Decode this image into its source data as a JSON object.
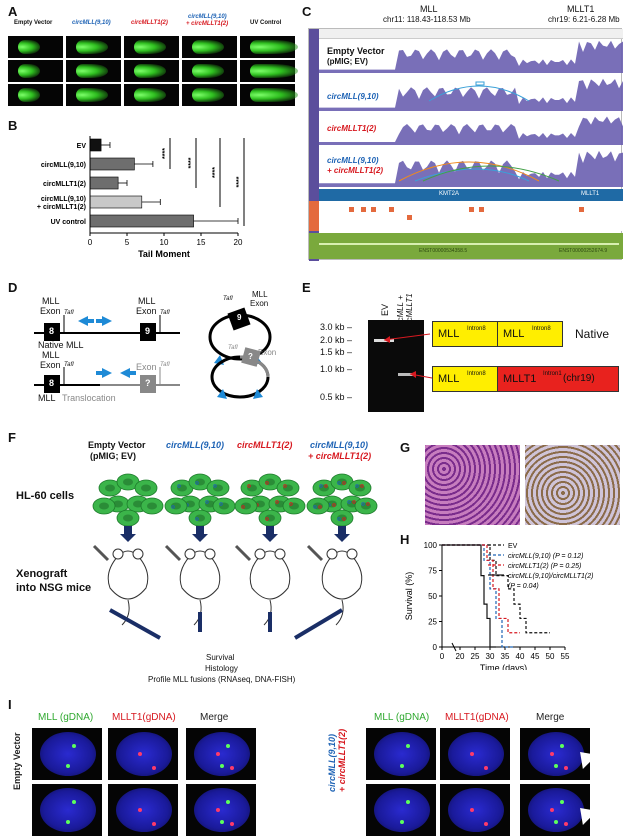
{
  "panels": {
    "A": "A",
    "B": "B",
    "C": "C",
    "D": "D",
    "E": "E",
    "F": "F",
    "G": "G",
    "H": "H",
    "I": "I"
  },
  "panel_a": {
    "columns": [
      "Empty Vector",
      "circMLL(9,10)",
      "circMLLT1(2)",
      "circMLL(9,10)",
      "+ circMLLT1(2)",
      "UV Control"
    ]
  },
  "panel_b": {
    "xlabel": "Tail Moment",
    "stars": "****",
    "chart_data": {
      "type": "bar",
      "categories": [
        "EV",
        "circMLL(9,10)",
        "circMLLT1(2)",
        "circMLL(9,10) + circMLLT1(2)",
        "UV control"
      ],
      "category_labels": [
        "EV",
        "circMLL(9,10)",
        "circMLLT1(2)",
        "circMLL(9,10)",
        "+ circMLLT1(2)",
        "UV control"
      ],
      "values": [
        1.5,
        6.0,
        3.8,
        7.0,
        14.0
      ],
      "errors": [
        1.2,
        2.5,
        1.2,
        2.5,
        6.0
      ],
      "colors": [
        "#111111",
        "#6e6e6e",
        "#6e6e6e",
        "#c8c8c8",
        "#6e6e6e"
      ],
      "xlabel": "Tail Moment",
      "xlim": [
        0,
        20
      ],
      "xticks": [
        "0",
        "5",
        "10",
        "15",
        "20"
      ],
      "significance": "****"
    }
  },
  "panel_c": {
    "gene1": "MLL",
    "coord1": "chr11: 118.43-118.53 Mb",
    "gene2": "MLLT1",
    "coord2": "chr19: 6.21-6.28 Mb",
    "track1": "Empty Vector",
    "track1b": "(pMIG; EV)",
    "track2": "circMLL(9,10)",
    "track3": "circMLLT1(2)",
    "track4a": "circMLL(9,10)",
    "track4b": "+ circMLLT1(2)",
    "gene_bar1": "KMT2A",
    "gene_bar2": "MLLT1",
    "ensembl1": "ENST00000534358.5",
    "ensembl2": "ENST00000252674.9"
  },
  "panel_d": {
    "mll": "MLL",
    "exon": "Exon",
    "exon8": "8",
    "exon9": "9",
    "tafI": "TafI",
    "native": "Native MLL",
    "q": "?",
    "trans1": "MLL",
    "trans2": "Translocation"
  },
  "panel_e": {
    "lane1": "EV",
    "lane2a": "circMLL +",
    "lane2b": "circMLLT1",
    "ladder": [
      "3.0 kb",
      "2.0 kb",
      "1.5 kb",
      "1.0 kb",
      "0.5 kb"
    ],
    "mll_intron": "MLL",
    "intron8": "Intron8",
    "mllt1": "MLLT1",
    "intron1": "Intron1",
    "chr19": " (chr19)",
    "native": "Native"
  },
  "panel_f": {
    "col1a": "Empty Vector",
    "col1b": "(pMIG; EV)",
    "col2": "circMLL(9,10)",
    "col3": "circMLLT1(2)",
    "col4a": "circMLL(9,10)",
    "col4b": "+ circMLLT1(2)",
    "row1": "HL-60 cells",
    "row2a": "Xenograft",
    "row2b": "into NSG mice",
    "out1": "Survival",
    "out2": "Histology",
    "out3": "Profile MLL fusions (RNAseq, DNA-FISH)"
  },
  "panel_h": {
    "ylabel": "Survival (%)",
    "xlabel": "Time (days)",
    "legend": [
      "EV",
      "circMLL(9,10) (P = 0.12)",
      "circMLLT1(2) (P = 0.25)",
      "circMLL(9,10)/circMLLT1(2)",
      "(P = 0.04)"
    ],
    "chart_data": {
      "type": "line",
      "xlabel": "Time (days)",
      "ylabel": "Survival (%)",
      "xlim": [
        0,
        55
      ],
      "ylim": [
        0,
        100
      ],
      "xticks": [
        "0",
        "20",
        "25",
        "30",
        "35",
        "40",
        "45",
        "50",
        "55"
      ],
      "yticks": [
        "0",
        "25",
        "50",
        "75",
        "100"
      ],
      "series": [
        {
          "name": "EV",
          "color": "#111111",
          "dash": true,
          "x": [
            0,
            30,
            30,
            32,
            32,
            36,
            36,
            38,
            38,
            40,
            40,
            42,
            42,
            50
          ],
          "y": [
            100,
            100,
            85,
            85,
            70,
            70,
            57,
            57,
            42,
            42,
            28,
            28,
            14,
            14
          ]
        },
        {
          "name": "circMLL(9,10) (P = 0.12)",
          "color": "#1e63b5",
          "dash": true,
          "x": [
            0,
            28,
            28,
            30,
            30,
            32,
            32,
            34,
            34,
            38
          ],
          "y": [
            100,
            100,
            85,
            85,
            57,
            57,
            28,
            28,
            0,
            0
          ]
        },
        {
          "name": "circMLLT1(2) (P = 0.25)",
          "color": "#d71920",
          "dash": true,
          "x": [
            0,
            29,
            29,
            31,
            31,
            33,
            33,
            36,
            36,
            40
          ],
          "y": [
            100,
            100,
            85,
            85,
            57,
            57,
            28,
            28,
            14,
            14
          ]
        },
        {
          "name": "circMLL(9,10)/circMLLT1(2) (P = 0.04)",
          "color": "#111111",
          "dash": false,
          "x": [
            0,
            27,
            27,
            28,
            28,
            29,
            29,
            30,
            30,
            32
          ],
          "y": [
            100,
            100,
            70,
            70,
            42,
            42,
            28,
            28,
            0,
            0
          ]
        }
      ]
    }
  },
  "panel_i": {
    "mll": "MLL (gDNA)",
    "mllt1": "MLLT1(gDNA)",
    "merge": "Merge",
    "row_left": "Empty Vector",
    "row_right_a": "circMLL(9,10)",
    "row_right_b": "+ circMLLT1(2)"
  }
}
